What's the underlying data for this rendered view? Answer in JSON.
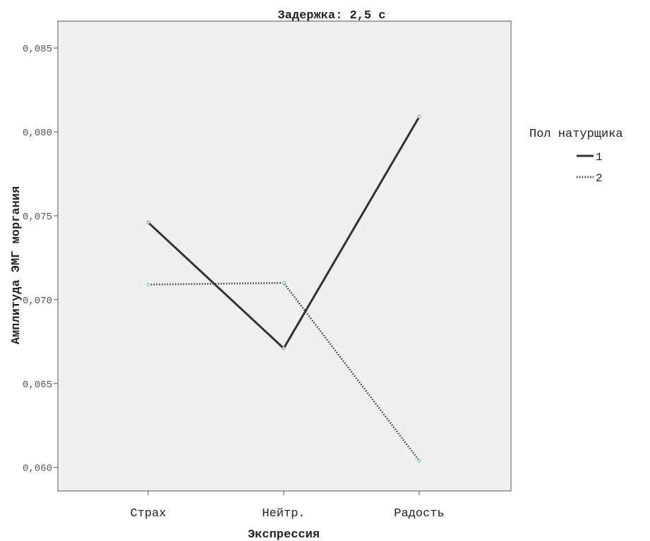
{
  "chart_data": {
    "type": "line",
    "title": "Задержка: 2,5 с",
    "xlabel": "Экспрессия",
    "ylabel": "Амплитуда ЭМГ моргания",
    "categories": [
      "Страх",
      "Нейтр.",
      "Радость"
    ],
    "ylim": [
      0.0586,
      0.0866
    ],
    "yticks": [
      0.06,
      0.065,
      0.07,
      0.075,
      0.08,
      0.085
    ],
    "ytick_labels": [
      "0,060",
      "0,065",
      "0,070",
      "0,075",
      "0,080",
      "0,085"
    ],
    "grid": false,
    "background": "#f0f0f0",
    "legend": {
      "title": "Пол натурщика",
      "position": "right"
    },
    "series": [
      {
        "name": "1",
        "values": [
          0.0746,
          0.0671,
          0.0809
        ],
        "style": "solid",
        "color": "#333333",
        "marker_color": "#8a84c8"
      },
      {
        "name": "2",
        "values": [
          0.0709,
          0.071,
          0.0604
        ],
        "style": "dotted",
        "color": "#444444",
        "marker_color": "#5fcf8a"
      }
    ]
  }
}
